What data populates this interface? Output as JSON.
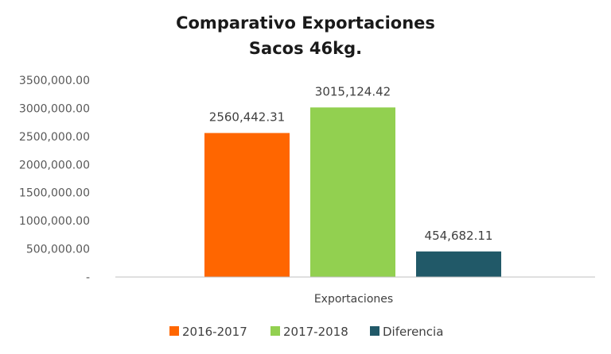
{
  "chart_data": {
    "type": "bar",
    "title_lines": [
      "Comparativo Exportaciones",
      "Sacos 46kg."
    ],
    "categories": [
      "Exportaciones"
    ],
    "series": [
      {
        "name": "2016-2017",
        "values": [
          2560442.31
        ],
        "label": "2560,442.31",
        "color": "#FF6600"
      },
      {
        "name": "2017-2018",
        "values": [
          3015124.42
        ],
        "label": "3015,124.42",
        "color": "#92D050"
      },
      {
        "name": "Diferencia",
        "values": [
          454682.11
        ],
        "label": "454,682.11",
        "color": "#215968"
      }
    ],
    "ylim": [
      0,
      3500000
    ],
    "yticks": [
      {
        "value": 3500000,
        "label": "3500,000.00"
      },
      {
        "value": 3000000,
        "label": "3000,000.00"
      },
      {
        "value": 2500000,
        "label": "2500,000.00"
      },
      {
        "value": 2000000,
        "label": "2000,000.00"
      },
      {
        "value": 1500000,
        "label": "1500,000.00"
      },
      {
        "value": 1000000,
        "label": "1000,000.00"
      },
      {
        "value": 500000,
        "label": "500,000.00"
      },
      {
        "value": 0,
        "label": "-"
      }
    ],
    "grid": false,
    "legend_position": "bottom",
    "axis_color": "#BFBFBF"
  }
}
